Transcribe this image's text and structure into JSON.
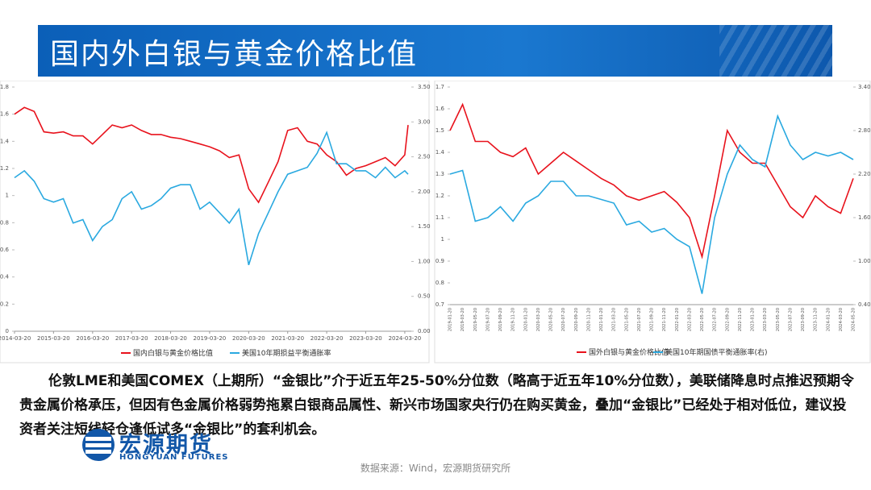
{
  "header": {
    "title": "国内外白银与黄金价格比值"
  },
  "chart_data": [
    {
      "type": "line",
      "x": [
        "2014-03-20",
        "2014-06-20",
        "2014-09-20",
        "2014-12-20",
        "2015-03-20",
        "2015-06-20",
        "2015-09-20",
        "2015-12-20",
        "2016-03-20",
        "2016-06-20",
        "2016-09-20",
        "2016-12-20",
        "2017-03-20",
        "2017-06-20",
        "2017-09-20",
        "2017-12-20",
        "2018-03-20",
        "2018-06-20",
        "2018-09-20",
        "2018-12-20",
        "2019-03-20",
        "2019-06-20",
        "2019-09-20",
        "2019-12-20",
        "2020-03-20",
        "2020-06-20",
        "2020-09-20",
        "2020-12-20",
        "2021-03-20",
        "2021-06-20",
        "2021-09-20",
        "2021-12-20",
        "2022-03-20",
        "2022-06-20",
        "2022-09-20",
        "2022-12-20",
        "2023-03-20",
        "2023-06-20",
        "2023-09-20",
        "2023-12-20",
        "2024-03-20",
        "2024-04-20"
      ],
      "xlim": [
        "2014-03-20",
        "2024-05-20"
      ],
      "xticks": [
        "2014-03-20",
        "2015-03-20",
        "2016-03-20",
        "2017-03-20",
        "2018-03-20",
        "2019-03-20",
        "2020-03-20",
        "2021-03-20",
        "2022-03-20",
        "2023-03-20",
        "2024-03-20"
      ],
      "ylim": [
        0,
        1.8
      ],
      "yticks": [
        0,
        0.2,
        0.4,
        0.6,
        0.8,
        1,
        1.2,
        1.4,
        1.6,
        1.8
      ],
      "y2lim": [
        0,
        3.5
      ],
      "y2ticks": [
        {
          "value": 0,
          "label": "0.00"
        },
        {
          "value": 0.5,
          "label": "0.50"
        },
        {
          "value": 1,
          "label": "1.00"
        },
        {
          "value": 1.5,
          "label": "1.50"
        },
        {
          "value": 2,
          "label": "2.00"
        },
        {
          "value": 2.5,
          "label": "2.50"
        },
        {
          "value": 3,
          "label": "3.00"
        },
        {
          "value": 3.5,
          "label": "3.50"
        }
      ],
      "series": [
        {
          "name": "国内白银与黄金价格比值",
          "color": "#e8121c",
          "values": [
            1.6,
            1.65,
            1.62,
            1.47,
            1.46,
            1.47,
            1.44,
            1.44,
            1.38,
            1.45,
            1.52,
            1.5,
            1.52,
            1.48,
            1.45,
            1.45,
            1.43,
            1.42,
            1.4,
            1.38,
            1.36,
            1.33,
            1.28,
            1.3,
            1.05,
            0.95,
            1.1,
            1.25,
            1.48,
            1.5,
            1.4,
            1.38,
            1.3,
            1.25,
            1.15,
            1.2,
            1.22,
            1.25,
            1.28,
            1.22,
            1.3,
            1.52
          ]
        },
        {
          "name": "美国10年期损益平衡通胀率",
          "color": "#2aa9e0",
          "axis": "y2",
          "values": [
            2.2,
            2.3,
            2.15,
            1.9,
            1.85,
            1.9,
            1.55,
            1.6,
            1.3,
            1.5,
            1.6,
            1.9,
            2.0,
            1.75,
            1.8,
            1.9,
            2.05,
            2.1,
            2.1,
            1.75,
            1.85,
            1.7,
            1.55,
            1.75,
            0.95,
            1.4,
            1.7,
            2.0,
            2.25,
            2.3,
            2.35,
            2.55,
            2.85,
            2.4,
            2.4,
            2.3,
            2.3,
            2.2,
            2.35,
            2.2,
            2.3,
            2.25
          ]
        }
      ]
    },
    {
      "type": "line",
      "x": [
        "2019-01-20",
        "2019-03-20",
        "2019-05-20",
        "2019-07-20",
        "2019-09-20",
        "2019-11-20",
        "2020-01-20",
        "2020-03-20",
        "2020-05-20",
        "2020-07-20",
        "2020-09-20",
        "2020-11-20",
        "2021-01-20",
        "2021-03-20",
        "2021-05-20",
        "2021-07-20",
        "2021-09-20",
        "2021-11-20",
        "2022-01-20",
        "2022-03-20",
        "2022-05-20",
        "2022-07-20",
        "2022-09-20",
        "2022-11-20",
        "2023-01-20",
        "2023-03-20",
        "2023-05-20",
        "2023-07-20",
        "2023-09-20",
        "2023-11-20",
        "2024-01-20",
        "2024-03-20",
        "2024-05-20"
      ],
      "ylim": [
        0.7,
        1.7
      ],
      "yticks": [
        0.7,
        0.8,
        0.9,
        1,
        1.1,
        1.2,
        1.3,
        1.4,
        1.5,
        1.6,
        1.7
      ],
      "y2lim": [
        0.4,
        3.4
      ],
      "y2ticks": [
        {
          "value": 0.4,
          "label": "0.40"
        },
        {
          "value": 1,
          "label": "1.00"
        },
        {
          "value": 1.6,
          "label": "1.60"
        },
        {
          "value": 2.2,
          "label": "2.20"
        },
        {
          "value": 2.8,
          "label": "2.80"
        },
        {
          "value": 3.4,
          "label": "3.40"
        }
      ],
      "series": [
        {
          "name": "国外白银与黄金价格比值",
          "color": "#e8121c",
          "values": [
            1.5,
            1.62,
            1.45,
            1.45,
            1.4,
            1.38,
            1.42,
            1.3,
            1.35,
            1.4,
            1.36,
            1.32,
            1.28,
            1.25,
            1.2,
            1.18,
            1.2,
            1.22,
            1.17,
            1.1,
            0.92,
            1.2,
            1.5,
            1.4,
            1.35,
            1.35,
            1.25,
            1.15,
            1.1,
            1.2,
            1.15,
            1.12,
            1.28
          ]
        },
        {
          "name": "美国10年期国债平衡通胀率(右)",
          "color": "#2aa9e0",
          "axis": "y2",
          "values": [
            2.2,
            2.25,
            1.55,
            1.6,
            1.75,
            1.55,
            1.8,
            1.9,
            2.1,
            2.1,
            1.9,
            1.9,
            1.85,
            1.8,
            1.5,
            1.55,
            1.4,
            1.45,
            1.3,
            1.2,
            0.55,
            1.6,
            2.2,
            2.6,
            2.4,
            2.3,
            3.0,
            2.6,
            2.4,
            2.5,
            2.45,
            2.5,
            2.4
          ]
        }
      ]
    }
  ],
  "body": {
    "paragraph": "伦敦LME和美国COMEX（上期所）“金银比”介于近五年25-50%分位数（略高于近五年10%分位数），美联储降息时点推迟预期令贵金属价格承压，但因有色金属价格弱势拖累白银商品属性、新兴市场国家央行仍在购买黄金，叠加“金银比”已经处于相对低位，建议投资者关注短线轻仓逢低试多“金银比”的套利机会。"
  },
  "footer": {
    "logo_cn": "宏源期货",
    "logo_en": "HONGYUAN FUTURES",
    "source": "数据来源：Wind，宏源期货研究所"
  }
}
